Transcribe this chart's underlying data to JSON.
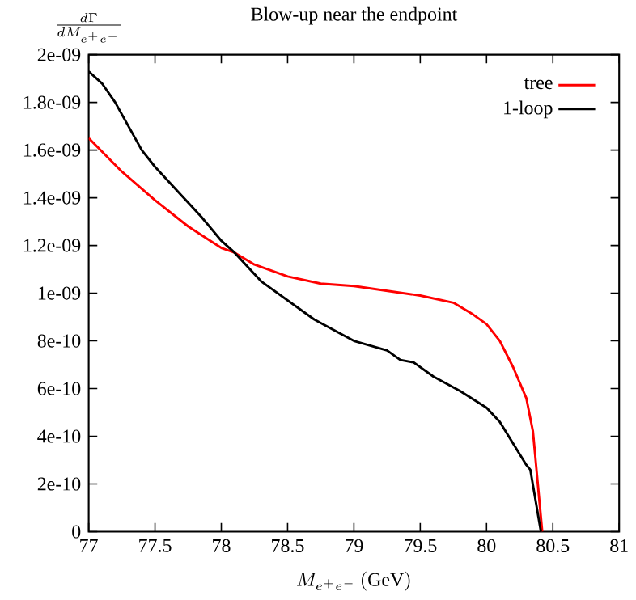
{
  "chart_data": {
    "type": "line",
    "title": "Blow-up near the endpoint",
    "xlabel": "M_{e^+e^-}\\,(\\mathrm{GeV})",
    "ylabel": "\\frac{d\\Gamma}{dM_{e^+e^-}}",
    "xlim": [
      77,
      81
    ],
    "ylim": [
      0,
      2e-09
    ],
    "xticks": [
      77,
      77.5,
      78,
      78.5,
      79,
      79.5,
      80,
      80.5,
      81
    ],
    "yticks": [
      0,
      {
        "value": 2e-10,
        "label": "2e-10"
      },
      {
        "value": 4e-10,
        "label": "4e-10"
      },
      {
        "value": 6e-10,
        "label": "6e-10"
      },
      {
        "value": 8e-10,
        "label": "8e-10"
      },
      {
        "value": 1e-09,
        "label": "1e-09"
      },
      {
        "value": 1.2e-09,
        "label": "1.2e-09"
      },
      {
        "value": 1.4e-09,
        "label": "1.4e-09"
      },
      {
        "value": 1.6e-09,
        "label": "1.6e-09"
      },
      {
        "value": 1.8e-09,
        "label": "1.8e-09"
      },
      {
        "value": 2e-09,
        "label": "2e-09"
      }
    ],
    "legend": "top right",
    "series": [
      {
        "name": "tree",
        "color": "#ff0000",
        "x": [
          77,
          77.25,
          77.5,
          77.75,
          78,
          78.1,
          78.25,
          78.5,
          78.75,
          79,
          79.25,
          79.5,
          79.75,
          79.9,
          80,
          80.1,
          80.2,
          80.3,
          80.35,
          80.42
        ],
        "values": [
          1.65e-09,
          1.51e-09,
          1.39e-09,
          1.28e-09,
          1.19e-09,
          1.17e-09,
          1.12e-09,
          1.07e-09,
          1.04e-09,
          1.03e-09,
          1.01e-09,
          9.9e-10,
          9.6e-10,
          9.1e-10,
          8.7e-10,
          8e-10,
          6.9e-10,
          5.6e-10,
          4.2e-10,
          0
        ]
      },
      {
        "name": "1-loop",
        "color": "#000000",
        "x": [
          77,
          77.1,
          77.2,
          77.4,
          77.5,
          77.7,
          77.85,
          78,
          78.1,
          78.3,
          78.5,
          78.7,
          78.9,
          79,
          79.25,
          79.35,
          79.45,
          79.6,
          79.8,
          80,
          80.1,
          80.2,
          80.3,
          80.33,
          80.41
        ],
        "values": [
          1.93e-09,
          1.88e-09,
          1.8e-09,
          1.6e-09,
          1.53e-09,
          1.41e-09,
          1.32e-09,
          1.22e-09,
          1.17e-09,
          1.05e-09,
          9.7e-10,
          8.9e-10,
          8.3e-10,
          8e-10,
          7.6e-10,
          7.2e-10,
          7.1e-10,
          6.5e-10,
          5.9e-10,
          5.2e-10,
          4.6e-10,
          3.7e-10,
          2.8e-10,
          2.6e-10,
          0
        ]
      }
    ]
  }
}
